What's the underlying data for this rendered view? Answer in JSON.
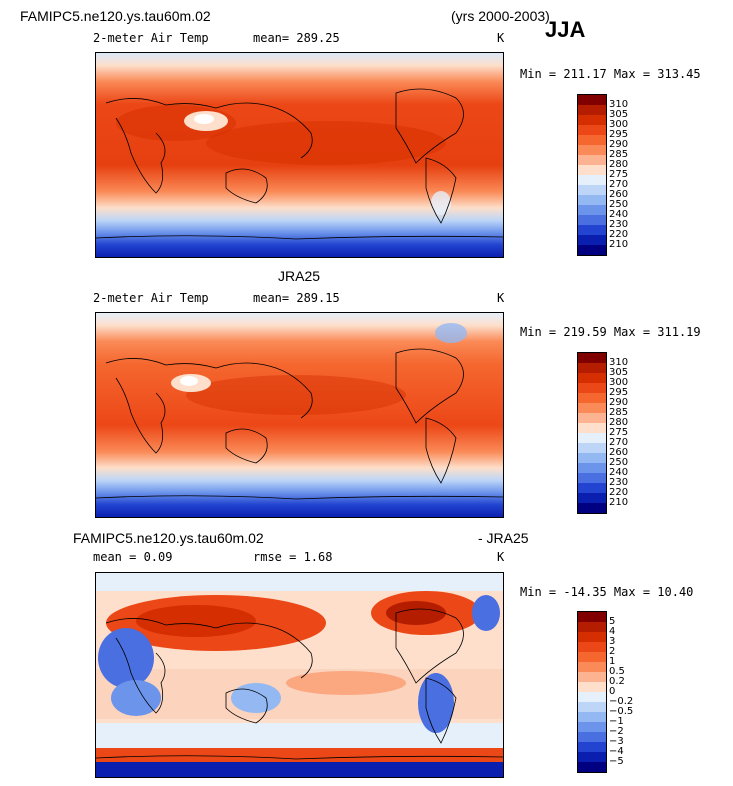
{
  "header": {
    "case_name": "FAMIPC5.ne120.ys.tau60m.02",
    "years": "(yrs 2000-2003)",
    "season": "JJA"
  },
  "panels": [
    {
      "title": "",
      "variable": "2-meter Air Temp",
      "mean": "mean= 289.25",
      "units": "K",
      "minmax": "Min = 211.17 Max = 313.45",
      "colorbar": {
        "labels": [
          "310",
          "305",
          "300",
          "295",
          "290",
          "285",
          "280",
          "275",
          "270",
          "260",
          "250",
          "240",
          "230",
          "220",
          "210"
        ],
        "colors": [
          "#800000",
          "#b51d00",
          "#d52e00",
          "#ec4717",
          "#f5672f",
          "#fa8a57",
          "#fcb392",
          "#fddfcb",
          "#e6f0fb",
          "#bdd6f7",
          "#93b8f2",
          "#6c94eb",
          "#4a6fe0",
          "#2244d0",
          "#0a1fb0",
          "#000080"
        ]
      }
    },
    {
      "title": "JRA25",
      "variable": "2-meter Air Temp",
      "mean": "mean= 289.15",
      "units": "K",
      "minmax": "Min = 219.59 Max = 311.19",
      "colorbar": {
        "labels": [
          "310",
          "305",
          "300",
          "295",
          "290",
          "285",
          "280",
          "275",
          "270",
          "260",
          "250",
          "240",
          "230",
          "220",
          "210"
        ],
        "colors": [
          "#800000",
          "#b51d00",
          "#d52e00",
          "#ec4717",
          "#f5672f",
          "#fa8a57",
          "#fcb392",
          "#fddfcb",
          "#e6f0fb",
          "#bdd6f7",
          "#93b8f2",
          "#6c94eb",
          "#4a6fe0",
          "#2244d0",
          "#0a1fb0",
          "#000080"
        ]
      }
    },
    {
      "title_left": "FAMIPC5.ne120.ys.tau60m.02",
      "title_right": "- JRA25",
      "mean": "mean =   0.09",
      "rmse": "rmse =    1.68",
      "units": "K",
      "minmax": "Min = -14.35 Max =  10.40",
      "colorbar": {
        "labels": [
          "5",
          "4",
          "3",
          "2",
          "1",
          "0.5",
          "0.2",
          "0",
          "−0.2",
          "−0.5",
          "−1",
          "−2",
          "−3",
          "−4",
          "−5"
        ],
        "colors": [
          "#800000",
          "#b51d00",
          "#d52e00",
          "#ec4717",
          "#f5672f",
          "#fa8a57",
          "#fcb392",
          "#fddfcb",
          "#e6f0fb",
          "#bdd6f7",
          "#93b8f2",
          "#6c94eb",
          "#4a6fe0",
          "#2244d0",
          "#0a1fb0",
          "#000080"
        ]
      }
    }
  ]
}
